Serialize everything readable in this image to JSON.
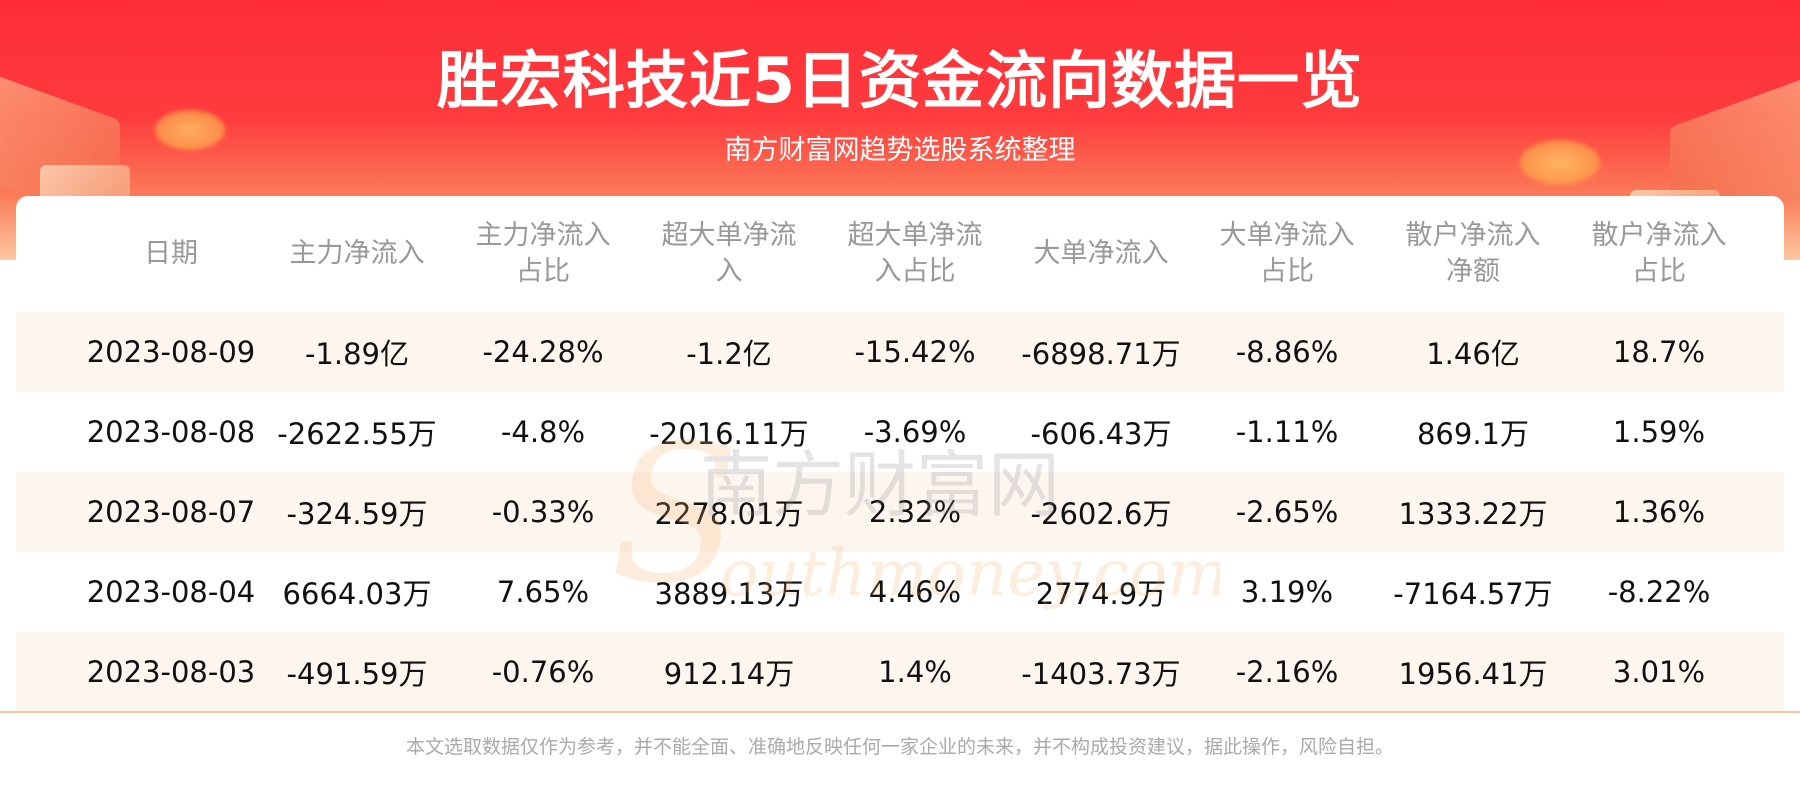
{
  "header": {
    "title": "胜宏科技近5日资金流向数据一览",
    "subtitle": "南方财富网趋势选股系统整理"
  },
  "table": {
    "columns": [
      "日期",
      "主力净流入",
      "主力净流入占比",
      "超大单净流入",
      "超大单净流入占比",
      "大单净流入",
      "大单净流入占比",
      "散户净流入净额",
      "散户净流入占比"
    ],
    "rows": [
      [
        "2023-08-09",
        "-1.89亿",
        "-24.28%",
        "-1.2亿",
        "-15.42%",
        "-6898.71万",
        "-8.86%",
        "1.46亿",
        "18.7%"
      ],
      [
        "2023-08-08",
        "-2622.55万",
        "-4.8%",
        "-2016.11万",
        "-3.69%",
        "-606.43万",
        "-1.11%",
        "869.1万",
        "1.59%"
      ],
      [
        "2023-08-07",
        "-324.59万",
        "-0.33%",
        "2278.01万",
        "2.32%",
        "-2602.6万",
        "-2.65%",
        "1333.22万",
        "1.36%"
      ],
      [
        "2023-08-04",
        "6664.03万",
        "7.65%",
        "3889.13万",
        "4.46%",
        "2774.9万",
        "3.19%",
        "-7164.57万",
        "-8.22%"
      ],
      [
        "2023-08-03",
        "-491.59万",
        "-0.76%",
        "912.14万",
        "1.4%",
        "-1403.73万",
        "-2.16%",
        "1956.41万",
        "3.01%"
      ]
    ]
  },
  "watermark": {
    "text_cn": "南方财富网",
    "text_en": "southmoney.com"
  },
  "footer": {
    "disclaimer": "本文选取数据仅作为参考，并不能全面、准确地反映任何一家企业的未来，并不构成投资建议，据此操作，风险自担。"
  },
  "colors": {
    "banner_red": "#fe2d38",
    "row_alt": "#fdf6ef",
    "divider": "#fbc79c",
    "header_text": "#999999"
  }
}
